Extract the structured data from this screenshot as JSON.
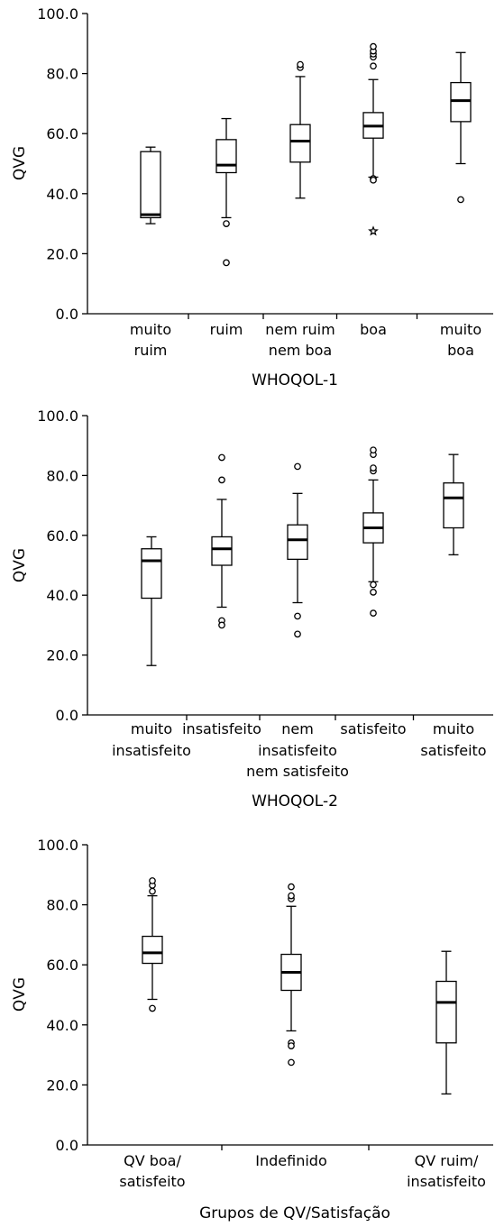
{
  "chart_data": [
    {
      "type": "boxplot",
      "ylabel": "QVG",
      "xlabel": "WHOQOL-1",
      "ylim": [
        0,
        100
      ],
      "yticks": [
        "0.0",
        "20.0",
        "40.0",
        "60.0",
        "80.0",
        "100.0"
      ],
      "categories": [
        {
          "lines": [
            "muito",
            "ruim"
          ],
          "min": 30,
          "q1": 32,
          "median": 33,
          "q3": 54,
          "max": 55.5,
          "outliers": [],
          "extremes": []
        },
        {
          "lines": [
            "ruim"
          ],
          "min": 32,
          "q1": 47,
          "median": 49.5,
          "q3": 58,
          "max": 65,
          "outliers": [
            30,
            17
          ],
          "extremes": []
        },
        {
          "lines": [
            "nem ruim",
            "nem boa"
          ],
          "min": 38.5,
          "q1": 50.5,
          "median": 57.5,
          "q3": 63,
          "max": 79,
          "outliers": [
            82,
            83
          ],
          "extremes": []
        },
        {
          "lines": [
            "boa"
          ],
          "min": 45.5,
          "q1": 58.5,
          "median": 62.5,
          "q3": 67,
          "max": 78,
          "outliers": [
            82.5,
            85.5,
            86.5,
            87.5,
            89,
            45,
            44.5
          ],
          "extremes": [
            27.5
          ]
        },
        {
          "lines": [
            "muito",
            "boa"
          ],
          "min": 50,
          "q1": 64,
          "median": 71,
          "q3": 77,
          "max": 87,
          "outliers": [
            38
          ],
          "extremes": []
        }
      ]
    },
    {
      "type": "boxplot",
      "ylabel": "QVG",
      "xlabel": "WHOQOL-2",
      "ylim": [
        0,
        100
      ],
      "yticks": [
        "0.0",
        "20.0",
        "40.0",
        "60.0",
        "80.0",
        "100.0"
      ],
      "categories": [
        {
          "lines": [
            "muito",
            "insatisfeito"
          ],
          "min": 16.5,
          "q1": 39,
          "median": 51.5,
          "q3": 55.5,
          "max": 59.5,
          "outliers": [],
          "extremes": []
        },
        {
          "lines": [
            "insatisfeito"
          ],
          "min": 36,
          "q1": 50,
          "median": 55.5,
          "q3": 59.5,
          "max": 72,
          "outliers": [
            78.5,
            86,
            31.5,
            30
          ],
          "extremes": []
        },
        {
          "lines": [
            "nem",
            "insatisfeito",
            "nem satisfeito"
          ],
          "min": 37.5,
          "q1": 52,
          "median": 58.5,
          "q3": 63.5,
          "max": 74,
          "outliers": [
            83,
            33,
            27
          ],
          "extremes": []
        },
        {
          "lines": [
            "satisfeito"
          ],
          "min": 44.5,
          "q1": 57.5,
          "median": 62.5,
          "q3": 67.5,
          "max": 78.5,
          "outliers": [
            81.5,
            82.5,
            87,
            88.5,
            43.5,
            41,
            34
          ],
          "extremes": []
        },
        {
          "lines": [
            "muito",
            "satisfeito"
          ],
          "min": 53.5,
          "q1": 62.5,
          "median": 72.5,
          "q3": 77.5,
          "max": 87,
          "outliers": [],
          "extremes": []
        }
      ]
    },
    {
      "type": "boxplot",
      "ylabel": "QVG",
      "xlabel": "Grupos de QV/Satisfação",
      "ylim": [
        0,
        100
      ],
      "yticks": [
        "0.0",
        "20.0",
        "40.0",
        "60.0",
        "80.0",
        "100.0"
      ],
      "categories": [
        {
          "lines": [
            "QV boa/",
            "satisfeito"
          ],
          "min": 48.5,
          "q1": 60.5,
          "median": 64,
          "q3": 69.5,
          "max": 83,
          "outliers": [
            84.5,
            86.5,
            88,
            45.5
          ],
          "extremes": []
        },
        {
          "lines": [
            "Indefinido"
          ],
          "min": 38,
          "q1": 51.5,
          "median": 57.5,
          "q3": 63.5,
          "max": 79.5,
          "outliers": [
            82,
            83,
            86,
            34,
            33,
            27.5
          ],
          "extremes": []
        },
        {
          "lines": [
            "QV ruim/",
            "insatisfeito"
          ],
          "min": 17,
          "q1": 34,
          "median": 47.5,
          "q3": 54.5,
          "max": 64.5,
          "outliers": [],
          "extremes": []
        }
      ]
    }
  ]
}
